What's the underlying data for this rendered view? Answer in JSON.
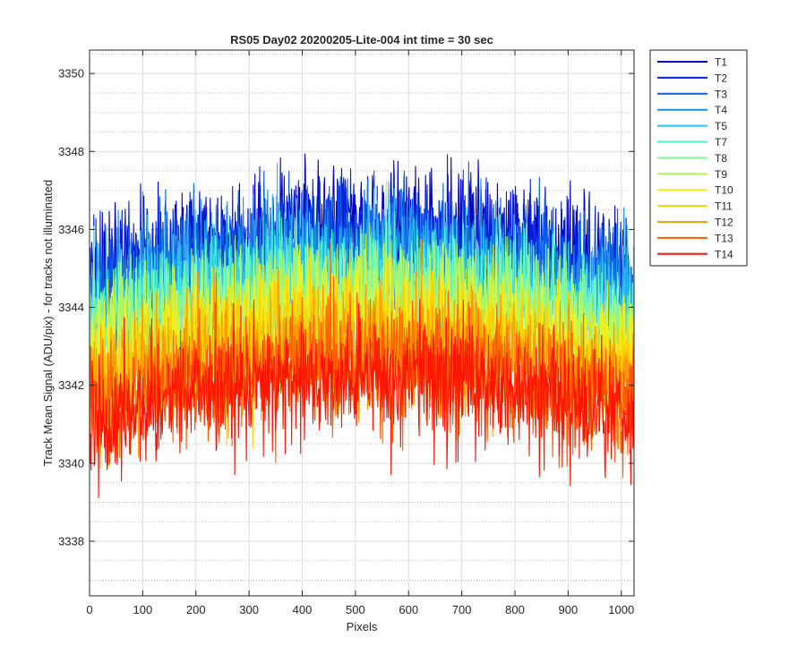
{
  "chart_data": {
    "type": "line",
    "title": "RS05 Day02 20200205-Lite-004 int time = 30 sec",
    "xlabel": "Pixels",
    "ylabel": "Track Mean Signal (ADU/pix) - for tracks not illuminated",
    "xlim": [
      0,
      1024
    ],
    "ylim": [
      3336.6,
      3350.6
    ],
    "xticks": [
      0,
      100,
      200,
      300,
      400,
      500,
      600,
      700,
      800,
      900,
      1000
    ],
    "yticks": [
      3338,
      3340,
      3342,
      3344,
      3346,
      3348,
      3350
    ],
    "grid": true,
    "minor_grid_y": true,
    "legend_position": "outside-top-right",
    "series": [
      {
        "name": "T1",
        "color": "#0000c8",
        "center_level": 3346.0,
        "edge_drop": 1.2
      },
      {
        "name": "T2",
        "color": "#0022dd",
        "center_level": 3345.7,
        "edge_drop": 1.2
      },
      {
        "name": "T3",
        "color": "#0a5be6",
        "center_level": 3345.5,
        "edge_drop": 1.2
      },
      {
        "name": "T4",
        "color": "#1a8fe6",
        "center_level": 3345.3,
        "edge_drop": 1.2
      },
      {
        "name": "T5",
        "color": "#29c3f2",
        "center_level": 3345.0,
        "edge_drop": 1.2
      },
      {
        "name": "T7",
        "color": "#4ff2d0",
        "center_level": 3344.7,
        "edge_drop": 1.2
      },
      {
        "name": "T8",
        "color": "#86f89a",
        "center_level": 3344.4,
        "edge_drop": 1.2
      },
      {
        "name": "T9",
        "color": "#b8f55e",
        "center_level": 3344.1,
        "edge_drop": 1.2
      },
      {
        "name": "T10",
        "color": "#f0f020",
        "center_level": 3343.8,
        "edge_drop": 1.2
      },
      {
        "name": "T11",
        "color": "#ffd000",
        "center_level": 3343.4,
        "edge_drop": 1.2
      },
      {
        "name": "T12",
        "color": "#ff9a00",
        "center_level": 3343.0,
        "edge_drop": 1.2
      },
      {
        "name": "T13",
        "color": "#ff5a00",
        "center_level": 3342.6,
        "edge_drop": 1.2
      },
      {
        "name": "T14",
        "color": "#ff1400",
        "center_level": 3342.3,
        "edge_drop": 1.2
      }
    ]
  }
}
